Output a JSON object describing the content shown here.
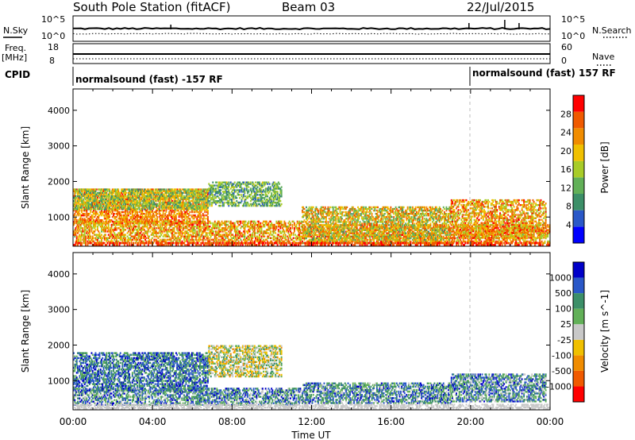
{
  "header": {
    "station": "South Pole Station (fitACF)",
    "beam": "Beam 03",
    "date": "22/Jul/2015"
  },
  "summary": {
    "left_labels": {
      "nsky": "N.Sky",
      "freq": "Freq.",
      "freq_unit": "[MHz]",
      "cpid": "CPID"
    },
    "right_labels": {
      "nsearch": "N.Search",
      "nave": "Nave"
    },
    "nsky_ticks": [
      "10^5",
      "10^0"
    ],
    "nsearch_ticks": [
      "10^5",
      "10^0"
    ],
    "freq_ticks": [
      "18",
      "8"
    ],
    "nave_ticks": [
      "60",
      "0"
    ],
    "cpid_segments": [
      "normalsound (fast) -157 RF",
      "normalsound (fast) 157 RF"
    ]
  },
  "colors": {
    "power_scale": [
      "#0000ff",
      "#2a58c8",
      "#3c8f68",
      "#62b058",
      "#a8cc28",
      "#f0c000",
      "#f08c00",
      "#f05a00",
      "#ff0000"
    ],
    "velocity_scale": [
      "#ff0000",
      "#f05a00",
      "#f08c00",
      "#f0c000",
      "#c8c8c8",
      "#62b058",
      "#3c8f68",
      "#2a58c8",
      "#0000c8"
    ],
    "ground_scatter": "#c8c8c8"
  },
  "chart_data": [
    {
      "type": "heatmap",
      "name": "power",
      "ylabel": "Slant Range [km]",
      "x_ticks": [
        "00:00",
        "04:00",
        "08:00",
        "12:00",
        "16:00",
        "20:00",
        "00:00"
      ],
      "y_ticks": [
        1000,
        2000,
        3000,
        4000
      ],
      "ylim": [
        180,
        4600
      ],
      "colorbar_label": "Power [dB]",
      "colorbar_ticks": [
        4,
        8,
        12,
        16,
        20,
        24,
        28
      ],
      "colorbar_range": [
        0,
        32
      ],
      "regions": [
        {
          "t0": 0.0,
          "t1": 6.8,
          "r0": 800,
          "r1": 1800,
          "v0": 18,
          "v1": 30
        },
        {
          "t0": 0.0,
          "t1": 6.8,
          "r0": 1200,
          "r1": 1800,
          "v0": 8,
          "v1": 22
        },
        {
          "t0": 6.8,
          "t1": 10.5,
          "r0": 1300,
          "r1": 2000,
          "v0": 6,
          "v1": 18
        },
        {
          "t0": 0.0,
          "t1": 11.5,
          "r0": 250,
          "r1": 900,
          "v0": 14,
          "v1": 30
        },
        {
          "t0": 11.5,
          "t1": 24.0,
          "r0": 250,
          "r1": 800,
          "v0": 16,
          "v1": 30
        },
        {
          "t0": 11.5,
          "t1": 19.0,
          "r0": 250,
          "r1": 1300,
          "v0": 10,
          "v1": 28
        },
        {
          "t0": 19.0,
          "t1": 23.8,
          "r0": 400,
          "r1": 1500,
          "v0": 14,
          "v1": 30
        },
        {
          "t0": 0.0,
          "t1": 24.0,
          "r0": 190,
          "r1": 300,
          "v0": 26,
          "v1": 30
        }
      ]
    },
    {
      "type": "heatmap",
      "name": "velocity",
      "ylabel": "Slant Range [km]",
      "xlabel": "Time UT",
      "x_ticks": [
        "00:00",
        "04:00",
        "08:00",
        "12:00",
        "16:00",
        "20:00",
        "00:00"
      ],
      "y_ticks": [
        1000,
        2000,
        3000,
        4000
      ],
      "ylim": [
        180,
        4600
      ],
      "colorbar_label": "Velocity [m s^-1]",
      "colorbar_ticks": [
        "1000",
        "500",
        "100",
        "25",
        "-25",
        "-100",
        "-500",
        "-1000"
      ],
      "regions": [
        {
          "t0": 0.0,
          "t1": 6.8,
          "r0": 700,
          "r1": 1800,
          "v0": 5,
          "v1": 8
        },
        {
          "t0": 6.8,
          "t1": 10.5,
          "r0": 1100,
          "r1": 2000,
          "v0": 2,
          "v1": 6
        },
        {
          "t0": 0.0,
          "t1": 11.5,
          "r0": 300,
          "r1": 800,
          "v0": 4,
          "v1": 8
        },
        {
          "t0": 11.5,
          "t1": 19.0,
          "r0": 350,
          "r1": 950,
          "v0": 4,
          "v1": 8
        },
        {
          "t0": 19.0,
          "t1": 23.8,
          "r0": 400,
          "r1": 1200,
          "v0": 4,
          "v1": 8
        },
        {
          "t0": 0.0,
          "t1": 24.0,
          "r0": 190,
          "r1": 350,
          "v0": 4,
          "v1": 4
        }
      ]
    }
  ]
}
